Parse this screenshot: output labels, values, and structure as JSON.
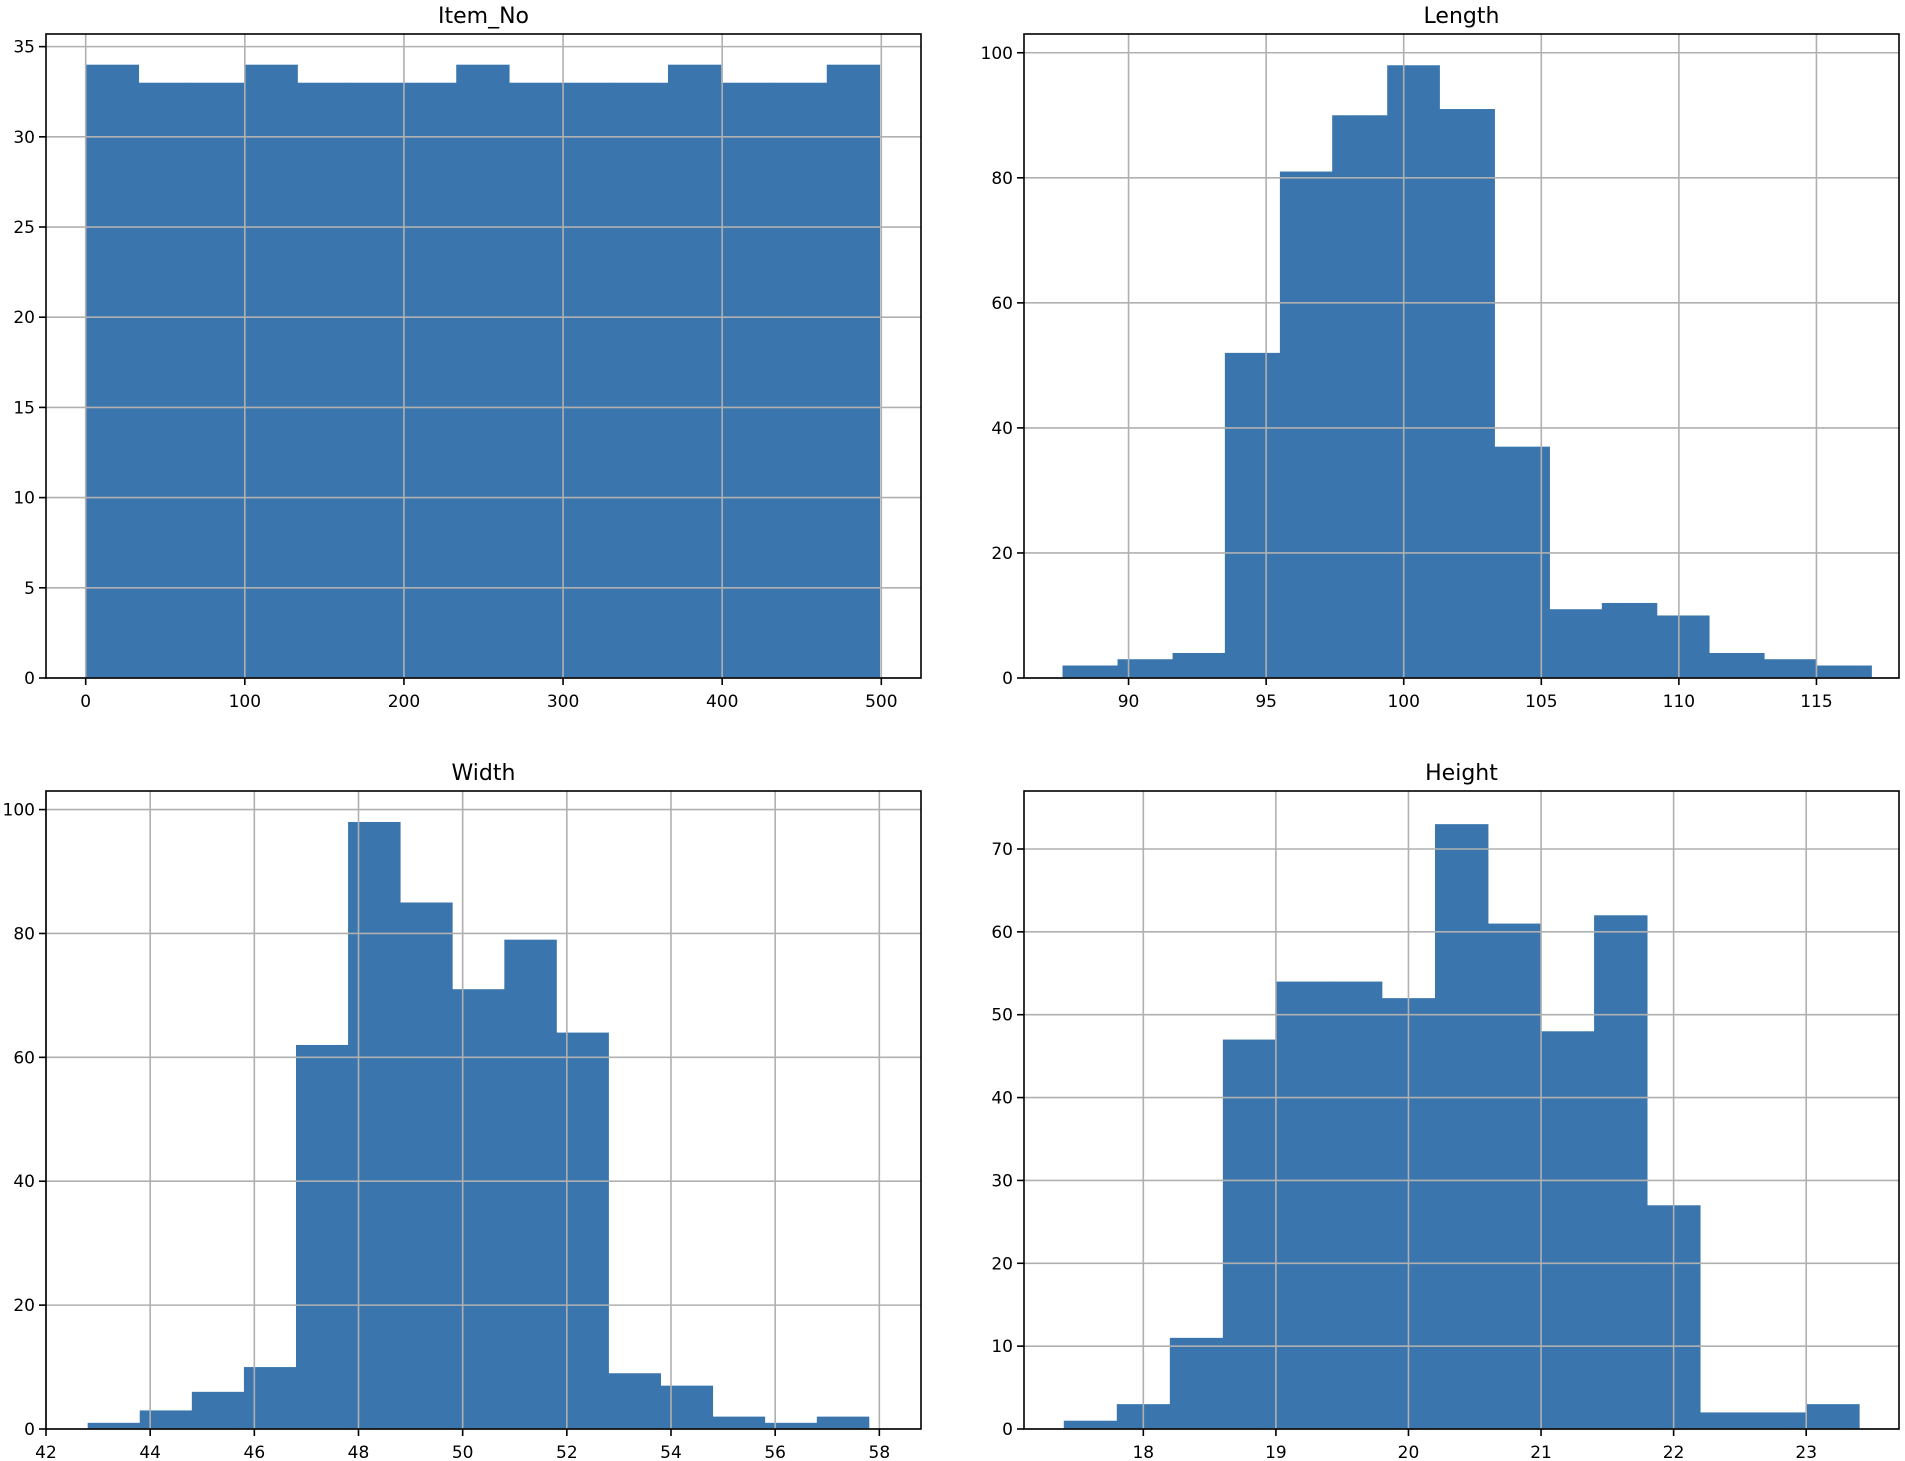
{
  "colors": {
    "bar": "#3a76ad",
    "grid": "#b0b0b0",
    "axis": "#000000"
  },
  "chart_data": [
    {
      "type": "bar",
      "subtype": "histogram",
      "title": "Item_No",
      "xlim": [
        -24.95,
        524.95
      ],
      "ylim": [
        0,
        35.7
      ],
      "xticks": [
        0,
        100,
        200,
        300,
        400,
        500
      ],
      "yticks": [
        0,
        5,
        10,
        15,
        20,
        25,
        30,
        35
      ],
      "grid": true,
      "bins": [
        [
          0,
          33.27,
          34
        ],
        [
          33.27,
          66.53,
          33
        ],
        [
          66.53,
          99.8,
          33
        ],
        [
          99.8,
          133.07,
          34
        ],
        [
          133.07,
          166.33,
          33
        ],
        [
          166.33,
          199.6,
          33
        ],
        [
          199.6,
          232.87,
          33
        ],
        [
          232.87,
          266.13,
          34
        ],
        [
          266.13,
          299.4,
          33
        ],
        [
          299.4,
          332.67,
          33
        ],
        [
          332.67,
          365.93,
          33
        ],
        [
          365.93,
          399.2,
          34
        ],
        [
          399.2,
          432.47,
          33
        ],
        [
          432.47,
          465.73,
          33
        ],
        [
          465.73,
          499,
          34
        ]
      ]
    },
    {
      "type": "bar",
      "subtype": "histogram",
      "title": "Length",
      "xlim": [
        86.2,
        118.0
      ],
      "ylim": [
        0,
        103
      ],
      "xticks": [
        90,
        95,
        100,
        105,
        110,
        115
      ],
      "yticks": [
        0,
        20,
        40,
        60,
        80,
        100
      ],
      "grid": true,
      "bins": [
        [
          87.6,
          89.6,
          2
        ],
        [
          89.6,
          91.6,
          3
        ],
        [
          91.6,
          93.5,
          4
        ],
        [
          93.5,
          95.5,
          52
        ],
        [
          95.5,
          97.4,
          81
        ],
        [
          97.4,
          99.4,
          90
        ],
        [
          99.4,
          101.3,
          98
        ],
        [
          101.3,
          103.3,
          91
        ],
        [
          103.3,
          105.3,
          37
        ],
        [
          105.3,
          107.2,
          11
        ],
        [
          107.2,
          109.2,
          12
        ],
        [
          109.2,
          111.1,
          10
        ],
        [
          111.1,
          113.1,
          4
        ],
        [
          113.1,
          115.0,
          3
        ],
        [
          115.0,
          117.0,
          2
        ]
      ]
    },
    {
      "type": "bar",
      "subtype": "histogram",
      "title": "Width",
      "xlim": [
        42.0,
        58.8
      ],
      "ylim": [
        0,
        103
      ],
      "xticks": [
        42,
        44,
        46,
        48,
        50,
        52,
        54,
        56,
        58
      ],
      "yticks": [
        0,
        20,
        40,
        60,
        80,
        100
      ],
      "grid": true,
      "bins": [
        [
          42.8,
          43.8,
          1
        ],
        [
          43.8,
          44.8,
          3
        ],
        [
          44.8,
          45.8,
          6
        ],
        [
          45.8,
          46.8,
          10
        ],
        [
          46.8,
          47.8,
          62
        ],
        [
          47.8,
          48.8,
          98
        ],
        [
          48.8,
          49.8,
          85
        ],
        [
          49.8,
          50.8,
          71
        ],
        [
          50.8,
          51.8,
          79
        ],
        [
          51.8,
          52.8,
          64
        ],
        [
          52.8,
          53.8,
          9
        ],
        [
          53.8,
          54.8,
          7
        ],
        [
          54.8,
          55.8,
          2
        ],
        [
          55.8,
          56.8,
          1
        ],
        [
          56.8,
          57.8,
          2
        ]
      ]
    },
    {
      "type": "bar",
      "subtype": "histogram",
      "title": "Height",
      "xlim": [
        17.1,
        23.7
      ],
      "ylim": [
        0,
        77
      ],
      "xticks": [
        18,
        19,
        20,
        21,
        22,
        23
      ],
      "yticks": [
        0,
        10,
        20,
        30,
        40,
        50,
        60,
        70
      ],
      "grid": true,
      "bins": [
        [
          17.4,
          17.8,
          1
        ],
        [
          17.8,
          18.2,
          3
        ],
        [
          18.2,
          18.6,
          11
        ],
        [
          18.6,
          19.0,
          47
        ],
        [
          19.0,
          19.4,
          54
        ],
        [
          19.4,
          19.8,
          54
        ],
        [
          19.8,
          20.2,
          52
        ],
        [
          20.2,
          20.6,
          73
        ],
        [
          20.6,
          21.0,
          61
        ],
        [
          21.0,
          21.4,
          48
        ],
        [
          21.4,
          21.8,
          62
        ],
        [
          21.8,
          22.2,
          27
        ],
        [
          22.2,
          22.6,
          2
        ],
        [
          22.6,
          23.0,
          2
        ],
        [
          23.0,
          23.4,
          3
        ]
      ]
    }
  ]
}
